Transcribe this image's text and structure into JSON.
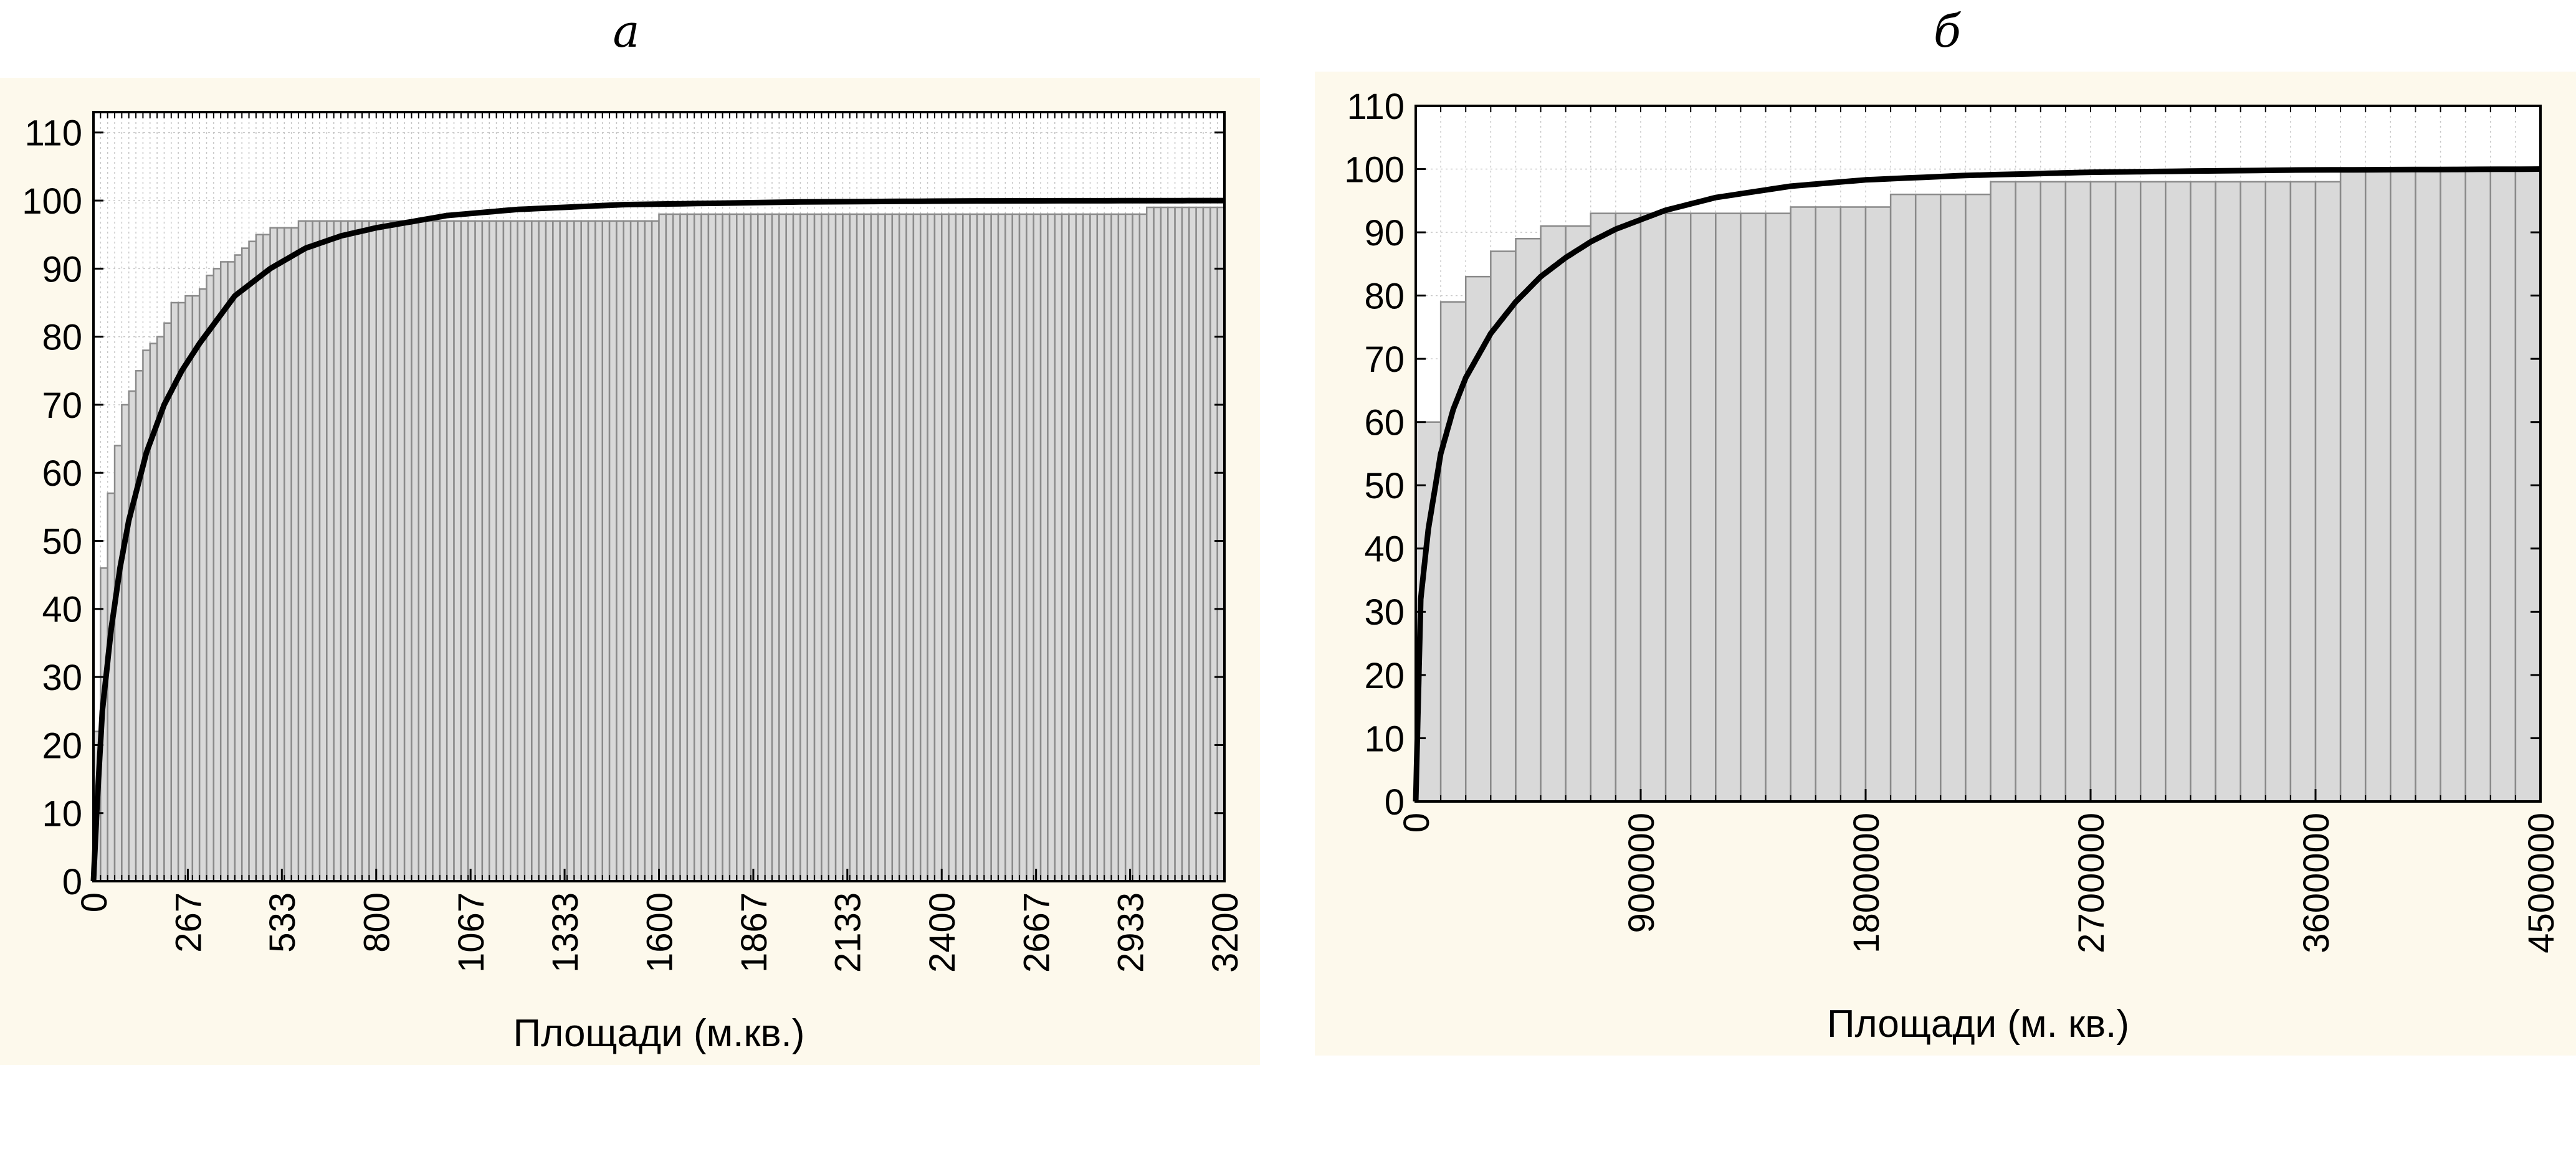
{
  "panels": {
    "a": {
      "label": "а"
    },
    "b": {
      "label": "б"
    }
  },
  "colors": {
    "panel_bg": "#fdf9ec",
    "plot_bg": "#ffffff",
    "bar_fill": "#d9d9d9",
    "bar_stroke": "#8a8a8a",
    "curve": "#000000",
    "grid": "#c8c8c8"
  },
  "chart_data": [
    {
      "type": "bar",
      "title": "а",
      "xlabel": "Площади (м.кв.)",
      "ylabel": "",
      "xlim": [
        0,
        3200
      ],
      "ylim": [
        0,
        113
      ],
      "grid": true,
      "x_ticks": [
        "0",
        "267",
        "533",
        "800",
        "1067",
        "1333",
        "1600",
        "1867",
        "2133",
        "2400",
        "2667",
        "2933",
        "3200"
      ],
      "y_ticks": [
        "0",
        "10",
        "20",
        "30",
        "40",
        "50",
        "60",
        "70",
        "80",
        "90",
        "100",
        "110"
      ],
      "bin_width": 20,
      "bars": {
        "name": "cumulative histogram",
        "values": [
          22,
          46,
          57,
          64,
          70,
          72,
          75,
          78,
          79,
          80,
          82,
          85,
          85,
          86,
          86,
          87,
          89,
          90,
          91,
          91,
          92,
          93,
          94,
          95,
          95,
          96,
          96,
          96,
          96,
          97,
          97,
          97,
          97,
          97,
          97,
          97,
          97,
          97,
          97,
          97,
          97,
          97,
          97,
          97,
          97,
          97,
          97,
          97,
          97,
          97,
          97,
          97,
          97,
          97,
          97,
          97,
          97,
          97,
          97,
          97,
          97,
          97,
          97,
          97,
          97,
          97,
          97,
          97,
          97,
          97,
          97,
          97,
          97,
          97,
          97,
          97,
          97,
          97,
          97,
          97,
          98,
          98,
          98,
          98,
          98,
          98,
          98,
          98,
          98,
          98,
          98,
          98,
          98,
          98,
          98,
          98,
          98,
          98,
          98,
          98,
          98,
          98,
          98,
          98,
          98,
          98,
          98,
          98,
          98,
          98,
          98,
          98,
          98,
          98,
          98,
          98,
          98,
          98,
          98,
          98,
          98,
          98,
          98,
          98,
          98,
          98,
          98,
          98,
          98,
          98,
          98,
          98,
          98,
          98,
          98,
          98,
          98,
          98,
          98,
          98,
          98,
          98,
          98,
          98,
          98,
          98,
          98,
          98,
          98,
          99,
          99,
          99,
          99,
          99,
          99,
          99,
          99,
          99,
          99,
          99,
          99
        ]
      },
      "curve": {
        "name": "fitted cumulative distribution",
        "x": [
          0,
          10,
          25,
          50,
          75,
          100,
          150,
          200,
          250,
          300,
          400,
          500,
          600,
          700,
          800,
          1000,
          1200,
          1500,
          2000,
          2500,
          3200
        ],
        "y": [
          0,
          11,
          25,
          37,
          46,
          53,
          63,
          70,
          75,
          79,
          86,
          90,
          93,
          94.8,
          96,
          97.8,
          98.7,
          99.4,
          99.8,
          99.95,
          100
        ]
      }
    },
    {
      "type": "bar",
      "title": "б",
      "xlabel": "Площади (м. кв.)",
      "ylabel": "",
      "xlim": [
        0,
        4500000
      ],
      "ylim": [
        0,
        110
      ],
      "grid": true,
      "x_ticks": [
        "0",
        "900000",
        "1800000",
        "2700000",
        "3600000",
        "4500000"
      ],
      "y_ticks": [
        "0",
        "10",
        "20",
        "30",
        "40",
        "50",
        "60",
        "70",
        "80",
        "90",
        "100",
        "110"
      ],
      "bin_width": 100000,
      "bars": {
        "name": "cumulative histogram",
        "values": [
          60,
          79,
          83,
          87,
          89,
          91,
          91,
          93,
          93,
          93,
          93,
          93,
          93,
          93,
          93,
          94,
          94,
          94,
          94,
          96,
          96,
          96,
          96,
          98,
          98,
          98,
          98,
          98,
          98,
          98,
          98,
          98,
          98,
          98,
          98,
          98,
          98,
          100,
          100,
          100,
          100,
          100,
          100,
          100,
          100
        ]
      },
      "curve": {
        "name": "fitted cumulative distribution",
        "x": [
          0,
          20000,
          50000,
          100000,
          150000,
          200000,
          300000,
          400000,
          500000,
          600000,
          700000,
          800000,
          900000,
          1000000,
          1200000,
          1500000,
          1800000,
          2200000,
          2700000,
          3500000,
          4500000
        ],
        "y": [
          0,
          32,
          43,
          55,
          62,
          67,
          74,
          79,
          83,
          86,
          88.5,
          90.5,
          92,
          93.5,
          95.5,
          97.3,
          98.3,
          99,
          99.5,
          99.85,
          100
        ]
      }
    }
  ]
}
